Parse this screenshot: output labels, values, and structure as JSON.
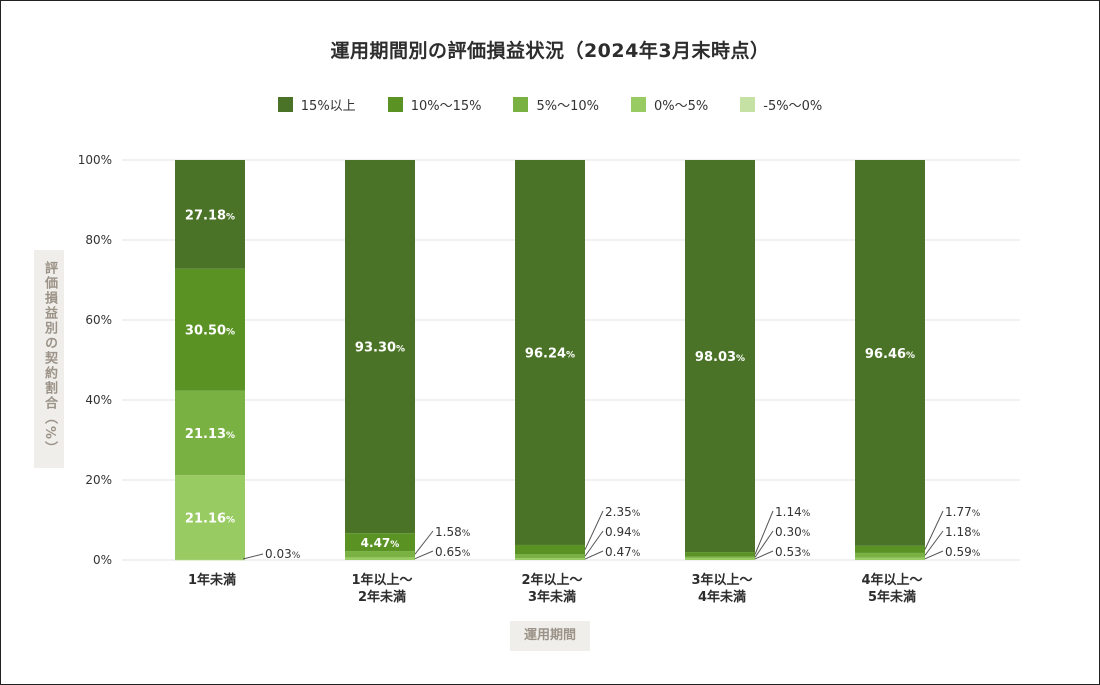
{
  "title": "運用期間別の評価損益状況（2024年3月末時点）",
  "y_axis_title": "評価損益別の契約割合（%）",
  "x_axis_title": "運用期間",
  "legend": [
    {
      "label": "15%以上",
      "color": "#4a7327"
    },
    {
      "label": "10%〜15%",
      "color": "#5a9324"
    },
    {
      "label": "5%〜10%",
      "color": "#79b143"
    },
    {
      "label": "0%〜5%",
      "color": "#98cb62"
    },
    {
      "label": "-5%〜0%",
      "color": "#c5e1a4"
    }
  ],
  "chart_data": {
    "type": "bar",
    "stacked": true,
    "ylim": [
      0,
      100
    ],
    "y_ticks": [
      "0%",
      "20%",
      "40%",
      "60%",
      "80%",
      "100%"
    ],
    "grid": true,
    "categories": [
      [
        "1年未満"
      ],
      [
        "1年以上〜",
        "2年未満"
      ],
      [
        "2年以上〜",
        "3年未満"
      ],
      [
        "3年以上〜",
        "4年未満"
      ],
      [
        "4年以上〜",
        "5年未満"
      ]
    ],
    "series": [
      {
        "name": "15%以上",
        "values": [
          27.18,
          93.3,
          96.24,
          98.03,
          96.46
        ]
      },
      {
        "name": "10%〜15%",
        "values": [
          30.5,
          4.47,
          2.35,
          1.14,
          1.77
        ]
      },
      {
        "name": "5%〜10%",
        "values": [
          21.13,
          1.58,
          0.94,
          0.3,
          1.18
        ]
      },
      {
        "name": "0%〜5%",
        "values": [
          21.16,
          0.65,
          0.47,
          0.53,
          0.59
        ]
      },
      {
        "name": "-5%〜0%",
        "values": [
          0.03,
          0,
          0,
          0,
          0
        ]
      }
    ],
    "value_labels": [
      [
        "27.18",
        "30.50",
        "21.13",
        "21.16",
        "0.03"
      ],
      [
        "93.30",
        "4.47",
        "1.58",
        "0.65",
        ""
      ],
      [
        "96.24",
        "2.35",
        "0.94",
        "0.47",
        ""
      ],
      [
        "98.03",
        "1.14",
        "0.30",
        "0.53",
        ""
      ],
      [
        "96.46",
        "1.77",
        "1.18",
        "0.59",
        ""
      ]
    ],
    "value_unit": "%"
  }
}
